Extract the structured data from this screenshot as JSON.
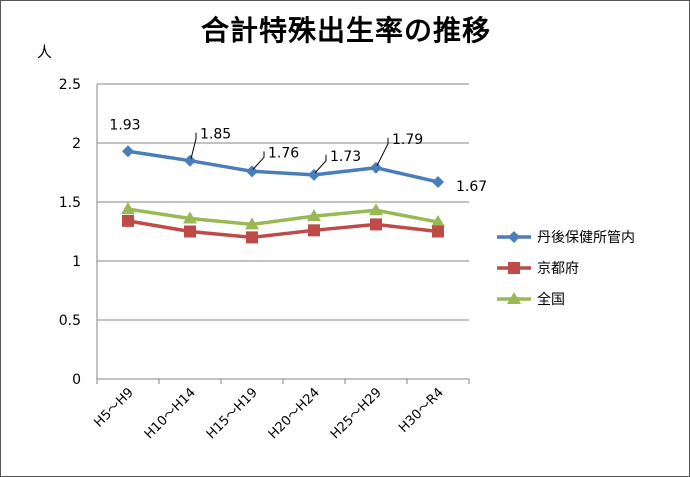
{
  "chart_data": {
    "type": "line",
    "title": "合計特殊出生率の推移",
    "ylabel": "人",
    "xlabel": "",
    "categories": [
      "H5～H9",
      "H10～H14",
      "H15～H19",
      "H20～H24",
      "H25～H29",
      "H30～R4"
    ],
    "ylim": [
      0,
      2.5
    ],
    "yticks": [
      "0",
      "0.5",
      "1",
      "1.5",
      "2",
      "2.5"
    ],
    "grid": true,
    "legend_position": "right",
    "series": [
      {
        "name": "丹後保健所管内",
        "color": "#4A7EBB",
        "marker": "diamond",
        "values": [
          1.93,
          1.85,
          1.76,
          1.73,
          1.79,
          1.67
        ],
        "labels": [
          "1.93",
          "1.85",
          "1.76",
          "1.73",
          "1.79",
          "1.67"
        ]
      },
      {
        "name": "京都府",
        "color": "#BE4B48",
        "marker": "square",
        "values": [
          1.34,
          1.25,
          1.2,
          1.26,
          1.31,
          1.25
        ]
      },
      {
        "name": "全国",
        "color": "#98B954",
        "marker": "triangle",
        "values": [
          1.44,
          1.36,
          1.31,
          1.38,
          1.43,
          1.33
        ]
      }
    ]
  }
}
